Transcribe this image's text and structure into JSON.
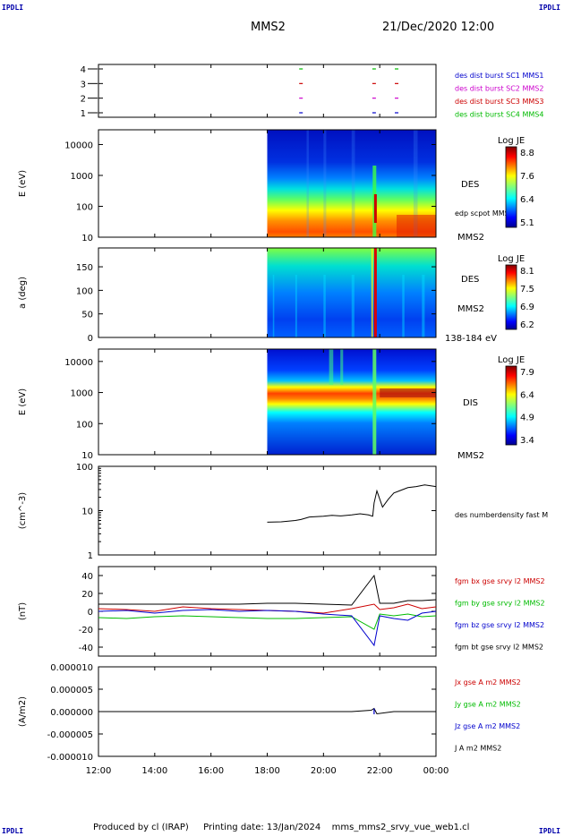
{
  "header": {
    "corner_tl": "IPDLI",
    "corner_tr": "IPDLI",
    "corner_bl": "IPDLI",
    "corner_br": "IPDLI",
    "mission": "MMS2",
    "datetime": "21/Dec/2020 12:00"
  },
  "footer": {
    "produced_by": "Produced by cl (IRAP)",
    "printing_date": "Printing date: 13/Jan/2024",
    "filename": "mms_mms2_srvy_vue_web1.cl"
  },
  "x_axis": {
    "ticks": [
      "12:00",
      "14:00",
      "16:00",
      "18:00",
      "20:00",
      "22:00",
      "00:00"
    ],
    "range_hours": [
      12,
      24
    ]
  },
  "chart_data": [
    {
      "type": "scatter",
      "panel": "burst-availability",
      "y_ticks": [
        "1",
        "2",
        "3",
        "4"
      ],
      "legend": [
        {
          "label": "des dist burst SC1 MMS1",
          "color": "#0000cc"
        },
        {
          "label": "des dist burst SC2 MMS2",
          "color": "#cc00cc"
        },
        {
          "label": "des dist burst SC3 MMS3",
          "color": "#cc0000"
        },
        {
          "label": "des dist burst SC4 MMS4",
          "color": "#00bb00"
        }
      ],
      "series": [
        {
          "sc": 4,
          "x": [
            19.2,
            21.8,
            22.6
          ],
          "color": "#00bb00"
        },
        {
          "sc": 3,
          "x": [
            19.2,
            21.8,
            22.6
          ],
          "color": "#cc0000"
        },
        {
          "sc": 2,
          "x": [
            19.2,
            21.8,
            22.6
          ],
          "color": "#cc00cc"
        },
        {
          "sc": 1,
          "x": [
            19.2,
            21.8,
            22.6
          ],
          "color": "#0000cc"
        }
      ]
    },
    {
      "type": "heatmap",
      "panel": "des-energy",
      "ylabel": "E (eV)",
      "y_ticks": [
        "10",
        "100",
        "1000",
        "10000"
      ],
      "side_labels": [
        "DES",
        "edp scpot MMS2",
        "MMS2"
      ],
      "colorbar": {
        "title": "Log JE",
        "ticks": [
          "8.8",
          "7.6",
          "6.4",
          "5.1"
        ],
        "min": 5.1,
        "max": 8.8
      },
      "data_start_hour": 18
    },
    {
      "type": "heatmap",
      "panel": "des-pitch-angle",
      "ylabel": "a (deg)",
      "y_ticks": [
        "0",
        "50",
        "100",
        "150"
      ],
      "side_labels": [
        "DES",
        "MMS2",
        "138-184 eV"
      ],
      "colorbar": {
        "title": "Log JE",
        "ticks": [
          "8.1",
          "7.5",
          "6.9",
          "6.2"
        ],
        "min": 6.2,
        "max": 8.1
      },
      "data_start_hour": 18
    },
    {
      "type": "heatmap",
      "panel": "dis-energy",
      "ylabel": "E (eV)",
      "y_ticks": [
        "10",
        "100",
        "1000",
        "10000"
      ],
      "side_labels": [
        "DIS",
        "MMS2"
      ],
      "colorbar": {
        "title": "Log JE",
        "ticks": [
          "7.9",
          "6.4",
          "4.9",
          "3.4"
        ],
        "min": 3.4,
        "max": 7.9
      },
      "data_start_hour": 18
    },
    {
      "type": "line",
      "panel": "density",
      "ylabel": "(cm^-3)",
      "y_ticks": [
        "1",
        "10",
        "100"
      ],
      "ylim": [
        1,
        100
      ],
      "log": true,
      "legend": [
        {
          "label": "des numberdensity fast M",
          "color": "#000000"
        }
      ],
      "x": [
        18.0,
        18.5,
        19.0,
        19.2,
        19.5,
        20.0,
        20.3,
        20.6,
        21.0,
        21.3,
        21.6,
        21.75,
        21.8,
        21.9,
        22.1,
        22.3,
        22.5,
        22.7,
        23.0,
        23.3,
        23.6,
        24.0
      ],
      "values": [
        5.5,
        5.6,
        6.0,
        6.3,
        7.2,
        7.5,
        7.8,
        7.6,
        8.0,
        8.5,
        8.0,
        7.5,
        15,
        28,
        12,
        18,
        25,
        28,
        33,
        35,
        38,
        35
      ]
    },
    {
      "type": "line",
      "panel": "magnetic-field",
      "ylabel": "(nT)",
      "y_ticks": [
        "-40",
        "-20",
        "0",
        "20",
        "40"
      ],
      "ylim": [
        -50,
        50
      ],
      "legend": [
        {
          "label": "fgm bx gse srvy l2 MMS2",
          "color": "#cc0000"
        },
        {
          "label": "fgm by gse srvy l2 MMS2",
          "color": "#00bb00"
        },
        {
          "label": "fgm bz gse srvy l2 MMS2",
          "color": "#0000cc"
        },
        {
          "label": "fgm bt gse srvy l2 MMS2",
          "color": "#000000"
        }
      ],
      "x": [
        12,
        13,
        14,
        15,
        16,
        17,
        18,
        19,
        20,
        21,
        21.8,
        22,
        22.5,
        23,
        23.5,
        24
      ],
      "series": [
        {
          "name": "bx",
          "color": "#cc0000",
          "values": [
            3,
            2,
            0,
            5,
            3,
            2,
            1,
            0,
            -2,
            3,
            8,
            2,
            4,
            8,
            3,
            5
          ]
        },
        {
          "name": "by",
          "color": "#00bb00",
          "values": [
            -7,
            -8,
            -6,
            -5,
            -6,
            -7,
            -8,
            -8,
            -7,
            -6,
            -20,
            -3,
            -5,
            -3,
            -6,
            -5
          ]
        },
        {
          "name": "bz",
          "color": "#0000cc",
          "values": [
            0,
            1,
            -2,
            1,
            2,
            0,
            1,
            0,
            -3,
            -5,
            -38,
            -5,
            -8,
            -10,
            -2,
            0
          ]
        },
        {
          "name": "bt",
          "color": "#000000",
          "values": [
            8,
            8,
            8,
            8,
            8,
            8,
            9,
            9,
            8,
            7,
            40,
            9,
            9,
            12,
            12,
            13
          ]
        }
      ]
    },
    {
      "type": "line",
      "panel": "current-density",
      "ylabel": "(A/m2)",
      "y_ticks": [
        "-0.000010",
        "-0.000005",
        "0.000000",
        "0.000005",
        "0.000010"
      ],
      "ylim": [
        -1e-05,
        1e-05
      ],
      "legend": [
        {
          "label": "Jx gse A m2 MMS2",
          "color": "#cc0000"
        },
        {
          "label": "Jy gse A m2 MMS2",
          "color": "#00bb00"
        },
        {
          "label": "Jz gse A m2 MMS2",
          "color": "#0000cc"
        },
        {
          "label": "J A m2 MMS2",
          "color": "#000000"
        }
      ],
      "x": [
        12,
        15,
        18,
        21,
        21.7,
        21.8,
        21.9,
        22.5,
        24
      ],
      "values": [
        0,
        0,
        0,
        0,
        3e-07,
        7e-07,
        -5e-07,
        0,
        0
      ]
    }
  ]
}
